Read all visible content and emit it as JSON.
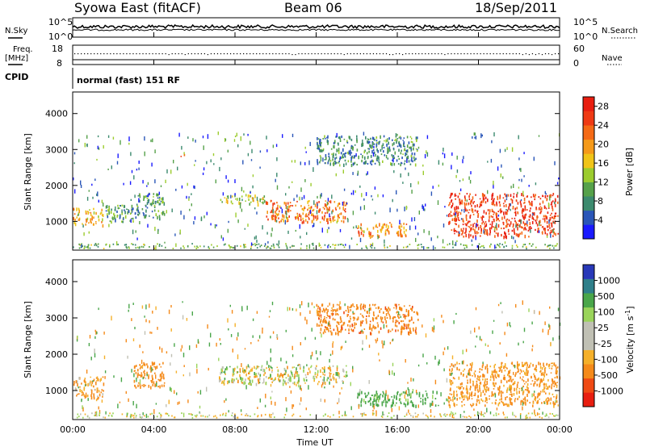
{
  "header": {
    "title": "Syowa East (fitACF)",
    "beam": "Beam 06",
    "date": "18/Sep/2011"
  },
  "status_panels": {
    "nsky": {
      "label": "N.Sky",
      "ticks": [
        "10^5",
        "10^0"
      ]
    },
    "nsearch": {
      "label": "N.Search",
      "ticks": [
        "10^5",
        "10^0"
      ]
    },
    "freq": {
      "label_line1": "Freq.",
      "label_line2": "[MHz]",
      "ticks": [
        "18",
        "8"
      ]
    },
    "nave": {
      "label": "Nave",
      "ticks": [
        "60",
        "0"
      ]
    },
    "cpid": {
      "label": "CPID",
      "text": "normal (fast) 151 RF"
    }
  },
  "colors": {
    "power": [
      "#1a1aff",
      "#2a56b8",
      "#3c8a6e",
      "#56a14a",
      "#9ccc2e",
      "#f0c418",
      "#f59a1a",
      "#f56a16",
      "#ef3a14",
      "#e81e10"
    ],
    "velocity": [
      "#e81e10",
      "#ef4a14",
      "#f58a1a",
      "#f5b02a",
      "#c0c0b4",
      "#c0c0b4",
      "#9ad45a",
      "#4aa64a",
      "#2f7f8a",
      "#2838b8"
    ]
  },
  "chart_data": [
    {
      "type": "heatmap",
      "name": "power",
      "xlabel": "",
      "ylabel": "Slant Range [km]",
      "yticks": [
        "1000",
        "2000",
        "3000",
        "4000"
      ],
      "ylim": [
        200,
        4600
      ],
      "colorbar_label": "Power [dB]",
      "colorbar_ticks": [
        "4",
        "8",
        "12",
        "16",
        "20",
        "24",
        "28"
      ],
      "scale_range": [
        0,
        30
      ],
      "regions": [
        {
          "t": [
            0.0,
            1.5
          ],
          "r": [
            900,
            1400
          ],
          "v": 18
        },
        {
          "t": [
            1.5,
            3.0
          ],
          "r": [
            1000,
            1500
          ],
          "v": 10
        },
        {
          "t": [
            3.0,
            4.5
          ],
          "r": [
            1100,
            1800
          ],
          "v": 9
        },
        {
          "t": [
            5.3,
            5.6
          ],
          "r": [
            2800,
            2900
          ],
          "v": 21
        },
        {
          "t": [
            7.2,
            9.5
          ],
          "r": [
            1500,
            1750
          ],
          "v": 14
        },
        {
          "t": [
            9.5,
            13.5
          ],
          "r": [
            1000,
            1600
          ],
          "v": 22
        },
        {
          "t": [
            14.0,
            16.5
          ],
          "r": [
            600,
            1000
          ],
          "v": 20
        },
        {
          "t": [
            18.5,
            23.9
          ],
          "r": [
            600,
            1800
          ],
          "v": 26
        },
        {
          "t": [
            12.0,
            17.0
          ],
          "r": [
            2600,
            3400
          ],
          "v": 8
        }
      ]
    },
    {
      "type": "heatmap",
      "name": "velocity",
      "xlabel": "Time UT",
      "ylabel": "Slant Range [km]",
      "xticks": [
        "00:00",
        "04:00",
        "08:00",
        "12:00",
        "16:00",
        "20:00",
        "00:00"
      ],
      "yticks": [
        "1000",
        "2000",
        "3000",
        "4000"
      ],
      "ylim": [
        200,
        4600
      ],
      "colorbar_label": "Velocity [m s^-1]",
      "colorbar_ticks": [
        "1000",
        "500",
        "100",
        "25",
        "-25",
        "-100",
        "-500",
        "-1000"
      ],
      "regions": [
        {
          "t": [
            0.0,
            1.5
          ],
          "r": [
            800,
            1400
          ],
          "v": -120
        },
        {
          "t": [
            3.0,
            4.5
          ],
          "r": [
            1100,
            1800
          ],
          "v": -300
        },
        {
          "t": [
            7.2,
            13.5
          ],
          "r": [
            1200,
            1700
          ],
          "v": 0
        },
        {
          "t": [
            14.0,
            18.0
          ],
          "r": [
            600,
            1000
          ],
          "v": 200
        },
        {
          "t": [
            18.5,
            23.9
          ],
          "r": [
            600,
            1800
          ],
          "v": -150
        },
        {
          "t": [
            12.0,
            17.0
          ],
          "r": [
            2600,
            3400
          ],
          "v": -400
        }
      ]
    }
  ]
}
